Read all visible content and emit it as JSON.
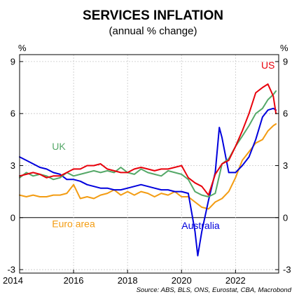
{
  "chart_data": {
    "type": "line",
    "title": "SERVICES INFLATION",
    "subtitle": "(annual % change)",
    "y_unit_left": "%",
    "y_unit_right": "%",
    "ylim": [
      -3.2,
      9.4
    ],
    "yticks": [
      -3,
      0,
      3,
      6,
      9
    ],
    "yticklabels": [
      "-3",
      "0",
      "3",
      "6",
      "9"
    ],
    "xlim": [
      2014,
      2023.6
    ],
    "xticks": [
      2014,
      2016,
      2018,
      2020,
      2022
    ],
    "xticklabels": [
      "2014",
      "2016",
      "2018",
      "2020",
      "2022"
    ],
    "grid": true,
    "source": "Source: ABS, BLS, ONS, Eurostat, CBA, Macrobond",
    "series": [
      {
        "name": "US",
        "color": "#e8000b",
        "x": [
          2014.0,
          2014.25,
          2014.5,
          2014.75,
          2015.0,
          2015.25,
          2015.5,
          2015.75,
          2016.0,
          2016.25,
          2016.5,
          2016.75,
          2017.0,
          2017.25,
          2017.5,
          2017.75,
          2018.0,
          2018.25,
          2018.5,
          2018.75,
          2019.0,
          2019.25,
          2019.5,
          2019.75,
          2020.0,
          2020.25,
          2020.5,
          2020.75,
          2021.0,
          2021.25,
          2021.5,
          2021.75,
          2022.0,
          2022.25,
          2022.5,
          2022.75,
          2023.0,
          2023.2,
          2023.4,
          2023.5
        ],
        "values": [
          2.4,
          2.5,
          2.6,
          2.5,
          2.3,
          2.4,
          2.4,
          2.6,
          2.8,
          2.8,
          3.0,
          3.0,
          3.1,
          2.8,
          2.7,
          2.6,
          2.6,
          2.8,
          2.9,
          2.8,
          2.7,
          2.8,
          2.8,
          2.9,
          3.0,
          2.3,
          2.0,
          1.8,
          1.3,
          2.5,
          3.1,
          3.3,
          4.1,
          5.0,
          6.0,
          7.2,
          7.5,
          7.7,
          7.0,
          6.0
        ]
      },
      {
        "name": "UK",
        "color": "#55a868",
        "x": [
          2014.0,
          2014.25,
          2014.5,
          2014.75,
          2015.0,
          2015.25,
          2015.5,
          2015.75,
          2016.0,
          2016.25,
          2016.5,
          2016.75,
          2017.0,
          2017.25,
          2017.5,
          2017.75,
          2018.0,
          2018.25,
          2018.5,
          2018.75,
          2019.0,
          2019.25,
          2019.5,
          2019.75,
          2020.0,
          2020.25,
          2020.5,
          2020.75,
          2021.0,
          2021.25,
          2021.5,
          2021.75,
          2022.0,
          2022.25,
          2022.5,
          2022.75,
          2023.0,
          2023.2,
          2023.4,
          2023.5
        ],
        "values": [
          2.3,
          2.6,
          2.4,
          2.5,
          2.4,
          2.2,
          2.3,
          2.6,
          2.4,
          2.5,
          2.6,
          2.7,
          2.6,
          2.7,
          2.6,
          2.9,
          2.6,
          2.5,
          2.8,
          2.6,
          2.5,
          2.4,
          2.7,
          2.6,
          2.5,
          2.2,
          1.5,
          1.3,
          1.2,
          1.4,
          3.1,
          3.4,
          4.1,
          4.7,
          5.3,
          6.0,
          6.3,
          6.8,
          7.1,
          7.3
        ]
      },
      {
        "name": "Australia",
        "color": "#0000dd",
        "x": [
          2014.0,
          2014.25,
          2014.5,
          2014.75,
          2015.0,
          2015.25,
          2015.5,
          2015.75,
          2016.0,
          2016.25,
          2016.5,
          2016.75,
          2017.0,
          2017.25,
          2017.5,
          2017.75,
          2018.0,
          2018.25,
          2018.5,
          2018.75,
          2019.0,
          2019.25,
          2019.5,
          2019.75,
          2020.0,
          2020.25,
          2020.5,
          2020.6,
          2020.75,
          2021.0,
          2021.25,
          2021.4,
          2021.5,
          2021.75,
          2022.0,
          2022.25,
          2022.5,
          2022.75,
          2023.0,
          2023.2,
          2023.4,
          2023.5
        ],
        "values": [
          3.5,
          3.3,
          3.1,
          2.9,
          2.8,
          2.6,
          2.5,
          2.2,
          2.2,
          2.1,
          1.9,
          1.8,
          1.7,
          1.7,
          1.6,
          1.6,
          1.7,
          1.8,
          1.9,
          1.8,
          1.7,
          1.6,
          1.6,
          1.5,
          1.5,
          1.4,
          -0.8,
          -2.2,
          -0.8,
          1.0,
          2.6,
          5.2,
          4.6,
          2.6,
          2.6,
          3.0,
          3.5,
          4.5,
          5.8,
          6.2,
          6.3,
          6.2
        ]
      },
      {
        "name": "Euro area",
        "color": "#f39c12",
        "x": [
          2014.0,
          2014.25,
          2014.5,
          2014.75,
          2015.0,
          2015.25,
          2015.5,
          2015.75,
          2016.0,
          2016.25,
          2016.5,
          2016.75,
          2017.0,
          2017.25,
          2017.5,
          2017.75,
          2018.0,
          2018.25,
          2018.5,
          2018.75,
          2019.0,
          2019.25,
          2019.5,
          2019.75,
          2020.0,
          2020.25,
          2020.5,
          2020.75,
          2021.0,
          2021.25,
          2021.5,
          2021.75,
          2022.0,
          2022.25,
          2022.5,
          2022.75,
          2023.0,
          2023.2,
          2023.4,
          2023.5
        ],
        "values": [
          1.3,
          1.2,
          1.3,
          1.2,
          1.2,
          1.3,
          1.3,
          1.4,
          1.9,
          1.1,
          1.2,
          1.1,
          1.3,
          1.4,
          1.6,
          1.3,
          1.5,
          1.3,
          1.5,
          1.4,
          1.2,
          1.4,
          1.3,
          1.5,
          1.2,
          1.2,
          0.9,
          0.6,
          0.5,
          0.9,
          1.1,
          1.5,
          2.3,
          3.3,
          3.8,
          4.3,
          4.5,
          5.0,
          5.3,
          5.4
        ]
      }
    ],
    "labels": [
      {
        "series": "US",
        "text": "US",
        "x": 2022.95,
        "y": 8.6
      },
      {
        "series": "UK",
        "text": "UK",
        "x": 2015.2,
        "y": 3.9
      },
      {
        "series": "Euro area",
        "text": "Euro area",
        "x": 2015.2,
        "y": -0.55
      },
      {
        "series": "Australia",
        "text": "Australia",
        "x": 2020.0,
        "y": -0.65
      }
    ]
  }
}
